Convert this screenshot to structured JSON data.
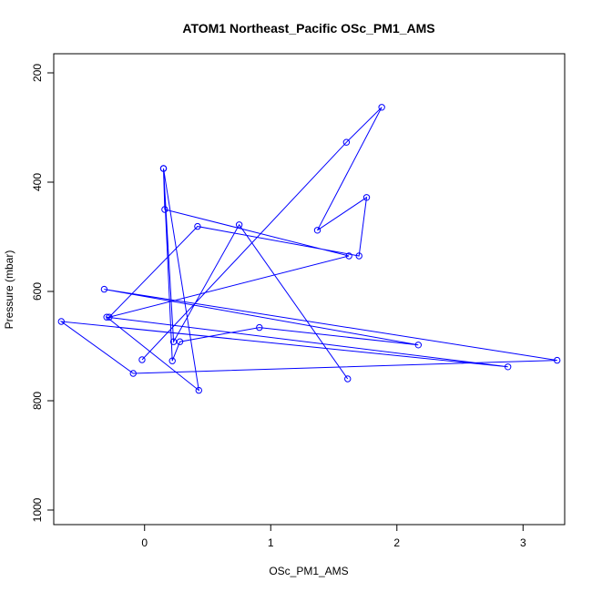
{
  "chart_data": {
    "type": "line",
    "title": "ATOM1 Northeast_Pacific OSc_PM1_AMS",
    "xlabel": "OSc_PM1_AMS",
    "ylabel": "Pressure (mbar)",
    "xlim": [
      -0.72,
      3.33
    ],
    "ylim": [
      1000,
      200
    ],
    "y_reversed": true,
    "x_ticks": [
      0,
      1,
      2,
      3
    ],
    "y_ticks": [
      200,
      400,
      600,
      800,
      1000
    ],
    "grid": false,
    "color": "#0000ff",
    "series": [
      {
        "x": [
          -0.02,
          1.6,
          1.88,
          1.37,
          1.76,
          1.7,
          0.42,
          -0.28,
          1.62,
          0.16,
          0.15,
          0.22,
          0.28,
          0.91,
          2.17,
          -0.32,
          3.27,
          -0.09,
          -0.66,
          2.88,
          -0.3,
          0.43,
          0.15,
          0.23,
          0.75,
          1.61
        ],
        "y": [
          725,
          327,
          263,
          488,
          428,
          535,
          481,
          647,
          535,
          450,
          375,
          727,
          692,
          666,
          698,
          596,
          726,
          750,
          655,
          738,
          647,
          781,
          375,
          692,
          478,
          760
        ]
      }
    ]
  }
}
